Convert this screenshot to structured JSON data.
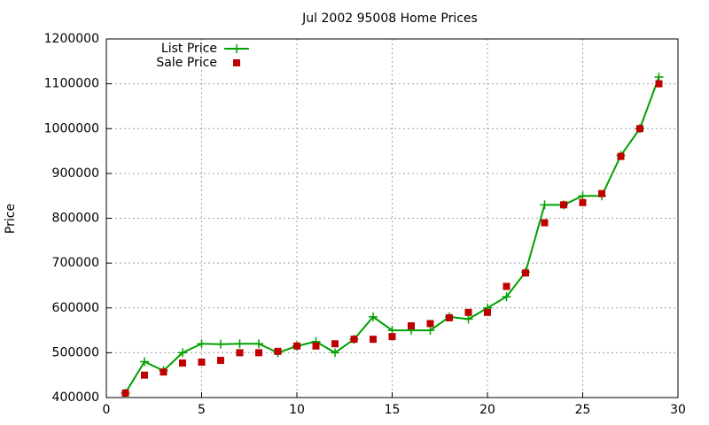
{
  "chart_data": {
    "type": "line",
    "title": "Jul 2002 95008 Home Prices",
    "y_label": "Price",
    "x": [
      1,
      2,
      3,
      4,
      5,
      6,
      7,
      8,
      9,
      10,
      11,
      12,
      13,
      14,
      15,
      16,
      17,
      18,
      19,
      20,
      21,
      22,
      23,
      24,
      25,
      26,
      27,
      28,
      29
    ],
    "series": [
      {
        "name": "List Price",
        "color": "#00a000",
        "mode": "lines+markers",
        "values": [
          410000,
          480000,
          460000,
          500000,
          520000,
          519000,
          520000,
          520000,
          500000,
          515000,
          525000,
          500000,
          530000,
          580000,
          550000,
          550000,
          550000,
          580000,
          575000,
          600000,
          625000,
          680000,
          830000,
          830000,
          850000,
          850000,
          940000,
          1000000,
          1115000
        ]
      },
      {
        "name": "Sale Price",
        "color": "#c00000",
        "mode": "markers",
        "values": [
          410000,
          450000,
          457000,
          477000,
          479000,
          483000,
          500000,
          500000,
          503000,
          515000,
          515000,
          520000,
          530000,
          530000,
          536000,
          560000,
          565000,
          578000,
          590000,
          590000,
          648000,
          678000,
          790000,
          830000,
          835000,
          855000,
          938000,
          1000000,
          1100000
        ]
      }
    ],
    "xlim": [
      0,
      30
    ],
    "xticks": [
      0,
      5,
      10,
      15,
      20,
      25,
      30
    ],
    "ylim": [
      400000,
      1200000
    ],
    "yticks": [
      400000,
      500000,
      600000,
      700000,
      800000,
      900000,
      1000000,
      1100000,
      1200000
    ],
    "grid": true,
    "legend": "top-left"
  }
}
